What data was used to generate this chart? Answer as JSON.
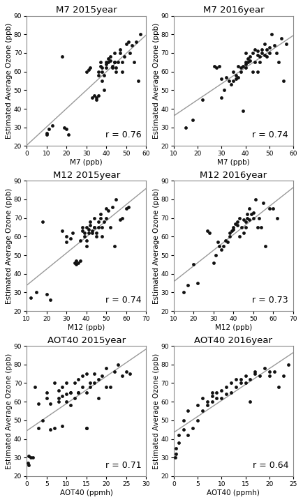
{
  "plots": [
    {
      "title": "M7 2015year",
      "xlabel": "M7 (ppb)",
      "ylabel": "Estimated Average Ozone (ppb)",
      "r": 0.76,
      "xlim": [
        0,
        60
      ],
      "ylim": [
        20,
        90
      ],
      "xticks": [
        0,
        10,
        20,
        30,
        40,
        50,
        60
      ],
      "yticks": [
        20,
        30,
        40,
        50,
        60,
        70,
        80,
        90
      ],
      "x": [
        10,
        10,
        11,
        13,
        18,
        19,
        20,
        21,
        30,
        31,
        32,
        33,
        34,
        35,
        35,
        36,
        36,
        36,
        37,
        37,
        38,
        38,
        38,
        39,
        39,
        40,
        40,
        40,
        41,
        41,
        42,
        42,
        43,
        43,
        44,
        44,
        44,
        45,
        45,
        46,
        47,
        47,
        48,
        48,
        49,
        50,
        51,
        52,
        53,
        54,
        55,
        56,
        57
      ],
      "y": [
        26,
        27,
        29,
        31,
        68,
        30,
        29,
        26,
        60,
        61,
        62,
        46,
        47,
        45,
        46,
        47,
        60,
        58,
        63,
        65,
        62,
        60,
        55,
        58,
        50,
        65,
        64,
        62,
        67,
        65,
        66,
        68,
        63,
        62,
        65,
        65,
        70,
        60,
        62,
        65,
        70,
        72,
        60,
        65,
        68,
        75,
        76,
        70,
        74,
        65,
        76,
        55,
        80
      ]
    },
    {
      "title": "M7 2016year",
      "xlabel": "M7 (ppb)",
      "ylabel": "Estimated Average Ozone (ppb)",
      "r": 0.74,
      "xlim": [
        10,
        60
      ],
      "ylim": [
        20,
        90
      ],
      "xticks": [
        10,
        20,
        30,
        40,
        50,
        60
      ],
      "yticks": [
        20,
        30,
        40,
        50,
        60,
        70,
        80,
        90
      ],
      "x": [
        15,
        18,
        22,
        27,
        28,
        29,
        30,
        30,
        31,
        32,
        33,
        34,
        35,
        35,
        36,
        36,
        37,
        37,
        38,
        38,
        39,
        39,
        40,
        40,
        40,
        40,
        41,
        41,
        42,
        42,
        43,
        43,
        44,
        44,
        45,
        45,
        45,
        46,
        46,
        47,
        47,
        48,
        48,
        49,
        49,
        50,
        50,
        51,
        52,
        53,
        54,
        55,
        56,
        57
      ],
      "y": [
        30,
        34,
        45,
        63,
        62,
        63,
        46,
        56,
        50,
        57,
        55,
        53,
        55,
        60,
        56,
        58,
        57,
        63,
        62,
        60,
        39,
        63,
        65,
        64,
        62,
        70,
        67,
        65,
        66,
        68,
        60,
        70,
        65,
        72,
        60,
        69,
        71,
        65,
        68,
        70,
        72,
        69,
        75,
        68,
        72,
        70,
        73,
        80,
        74,
        70,
        65,
        78,
        55,
        75
      ]
    },
    {
      "title": "M12 2015year",
      "xlabel": "M12 (ppb)",
      "ylabel": "Estimated Average Ozone (ppb)",
      "r": 0.74,
      "xlim": [
        10,
        70
      ],
      "ylim": [
        20,
        90
      ],
      "xticks": [
        10,
        20,
        30,
        40,
        50,
        60,
        70
      ],
      "yticks": [
        20,
        30,
        40,
        50,
        60,
        70,
        80,
        90
      ],
      "x": [
        12,
        15,
        18,
        20,
        22,
        28,
        30,
        30,
        32,
        33,
        34,
        35,
        35,
        36,
        37,
        37,
        38,
        38,
        39,
        39,
        40,
        40,
        40,
        41,
        41,
        42,
        42,
        43,
        43,
        44,
        44,
        44,
        45,
        45,
        46,
        46,
        47,
        47,
        48,
        48,
        49,
        50,
        50,
        51,
        52,
        53,
        54,
        55,
        57,
        58,
        60,
        61
      ],
      "y": [
        27,
        30,
        68,
        29,
        26,
        63,
        57,
        60,
        59,
        62,
        46,
        47,
        45,
        46,
        47,
        58,
        63,
        65,
        62,
        60,
        55,
        58,
        65,
        64,
        62,
        66,
        68,
        63,
        62,
        65,
        65,
        70,
        60,
        62,
        65,
        68,
        70,
        72,
        60,
        65,
        68,
        75,
        70,
        74,
        65,
        76,
        55,
        80,
        69,
        70,
        75,
        76
      ]
    },
    {
      "title": "M12 2016year",
      "xlabel": "M12 (ppb)",
      "ylabel": "Estimated Average Ozone (ppb)",
      "r": 0.73,
      "xlim": [
        10,
        70
      ],
      "ylim": [
        20,
        90
      ],
      "xticks": [
        10,
        20,
        30,
        40,
        50,
        60,
        70
      ],
      "yticks": [
        20,
        30,
        40,
        50,
        60,
        70,
        80,
        90
      ],
      "x": [
        15,
        17,
        20,
        22,
        27,
        28,
        30,
        31,
        32,
        33,
        34,
        35,
        36,
        37,
        38,
        38,
        39,
        40,
        40,
        41,
        42,
        42,
        43,
        43,
        44,
        45,
        45,
        46,
        46,
        47,
        47,
        48,
        48,
        49,
        50,
        50,
        51,
        52,
        53,
        54,
        55,
        56,
        58,
        60,
        62
      ],
      "y": [
        30,
        34,
        45,
        35,
        63,
        62,
        46,
        50,
        57,
        55,
        53,
        55,
        58,
        57,
        62,
        60,
        63,
        65,
        64,
        67,
        66,
        68,
        60,
        70,
        65,
        62,
        69,
        65,
        68,
        70,
        72,
        69,
        75,
        72,
        70,
        73,
        80,
        65,
        70,
        65,
        78,
        55,
        75,
        75,
        70
      ]
    },
    {
      "title": "AOT40 2015year",
      "xlabel": "AOT40 (ppmh)",
      "ylabel": "Estimated Average Ozone (ppb)",
      "r": 0.71,
      "xlim": [
        0,
        30
      ],
      "ylim": [
        20,
        90
      ],
      "xticks": [
        0,
        5,
        10,
        15,
        20,
        25,
        30
      ],
      "yticks": [
        20,
        30,
        40,
        50,
        60,
        70,
        80,
        90
      ],
      "x": [
        0.3,
        0.5,
        0.5,
        1.0,
        1.5,
        2,
        3,
        3,
        4,
        5,
        5,
        6,
        6,
        7,
        7,
        8,
        8,
        8,
        9,
        9,
        9,
        10,
        10,
        10,
        11,
        11,
        11,
        12,
        12,
        13,
        13,
        13,
        14,
        14,
        15,
        15,
        15,
        15,
        16,
        16,
        17,
        17,
        18,
        18,
        19,
        20,
        20,
        21,
        22,
        23,
        24,
        25,
        26
      ],
      "y": [
        27,
        26,
        31,
        30,
        30,
        68,
        59,
        46,
        50,
        62,
        65,
        59,
        45,
        70,
        46,
        66,
        62,
        60,
        68,
        63,
        47,
        60,
        70,
        64,
        65,
        65,
        58,
        70,
        62,
        65,
        72,
        65,
        68,
        74,
        75,
        46,
        46,
        65,
        68,
        70,
        70,
        75,
        72,
        62,
        74,
        78,
        68,
        68,
        76,
        80,
        74,
        76,
        75
      ]
    },
    {
      "title": "AOT40 2016year",
      "xlabel": "AOT40 (ppmh)",
      "ylabel": "Estimated Average Ozone (ppb)",
      "r": 0.64,
      "xlim": [
        0,
        25
      ],
      "ylim": [
        20,
        90
      ],
      "xticks": [
        0,
        5,
        10,
        15,
        20,
        25
      ],
      "yticks": [
        20,
        30,
        40,
        50,
        60,
        70,
        80,
        90
      ],
      "x": [
        0.3,
        0.5,
        0.5,
        1,
        1,
        2,
        2,
        3,
        3,
        4,
        5,
        5,
        6,
        6,
        7,
        7,
        8,
        8,
        8,
        9,
        9,
        10,
        10,
        11,
        11,
        12,
        12,
        13,
        13,
        14,
        14,
        15,
        15,
        16,
        16,
        17,
        17,
        18,
        19,
        20,
        20,
        21,
        22,
        23,
        24
      ],
      "y": [
        30,
        35,
        32,
        38,
        42,
        45,
        50,
        42,
        55,
        46,
        50,
        58,
        55,
        62,
        58,
        60,
        63,
        60,
        65,
        62,
        65,
        62,
        66,
        64,
        68,
        65,
        70,
        68,
        72,
        70,
        72,
        70,
        74,
        72,
        60,
        75,
        76,
        74,
        78,
        74,
        76,
        76,
        68,
        74,
        80
      ]
    }
  ],
  "dot_color": "#111111",
  "dot_size": 12,
  "line_color": "#999999",
  "line_width": 1.0,
  "background_color": "#ffffff",
  "title_fontsize": 9.5,
  "label_fontsize": 7.5,
  "tick_fontsize": 6.5,
  "r_fontsize": 9
}
